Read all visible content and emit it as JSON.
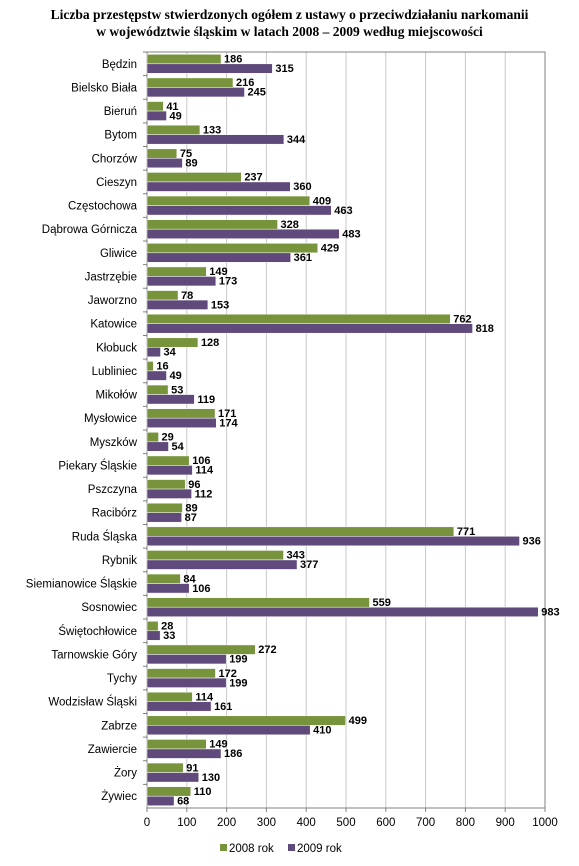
{
  "chart_data": {
    "type": "bar",
    "orientation": "horizontal",
    "title_line1": "Liczba przestępstw stwierdzonych ogółem z ustawy o przeciwdziałaniu narkomanii",
    "title_line2": "w województwie śląskim w latach 2008 – 2009 według miejscowości",
    "xlim": [
      0,
      1000
    ],
    "xticks": [
      "0",
      "100",
      "200",
      "300",
      "400",
      "500",
      "600",
      "700",
      "800",
      "900",
      "1000"
    ],
    "grid": true,
    "legend_position": "bottom",
    "categories": [
      "Będzin",
      "Bielsko Biała",
      "Bieruń",
      "Bytom",
      "Chorzów",
      "Cieszyn",
      "Częstochowa",
      "Dąbrowa Górnicza",
      "Gliwice",
      "Jastrzębie",
      "Jaworzno",
      "Katowice",
      "Kłobuck",
      "Lubliniec",
      "Mikołów",
      "Mysłowice",
      "Myszków",
      "Piekary Śląskie",
      "Pszczyna",
      "Racibórz",
      "Ruda Śląska",
      "Rybnik",
      "Siemianowice Śląskie",
      "Sosnowiec",
      "Świętochłowice",
      "Tarnowskie Góry",
      "Tychy",
      "Wodzisław Śląski",
      "Zabrze",
      "Zawiercie",
      "Żory",
      "Żywiec"
    ],
    "series": [
      {
        "name": "2008 rok",
        "color": "#77933C",
        "values": [
          186,
          216,
          41,
          133,
          75,
          237,
          409,
          328,
          429,
          149,
          78,
          762,
          128,
          16,
          53,
          171,
          29,
          106,
          96,
          89,
          771,
          343,
          84,
          559,
          28,
          272,
          172,
          114,
          499,
          149,
          91,
          110
        ]
      },
      {
        "name": "2009 rok",
        "color": "#604A7B",
        "values": [
          315,
          245,
          49,
          344,
          89,
          360,
          463,
          483,
          361,
          173,
          153,
          818,
          34,
          49,
          119,
          174,
          54,
          114,
          112,
          87,
          936,
          377,
          106,
          983,
          33,
          199,
          199,
          161,
          410,
          186,
          130,
          68
        ]
      }
    ]
  }
}
